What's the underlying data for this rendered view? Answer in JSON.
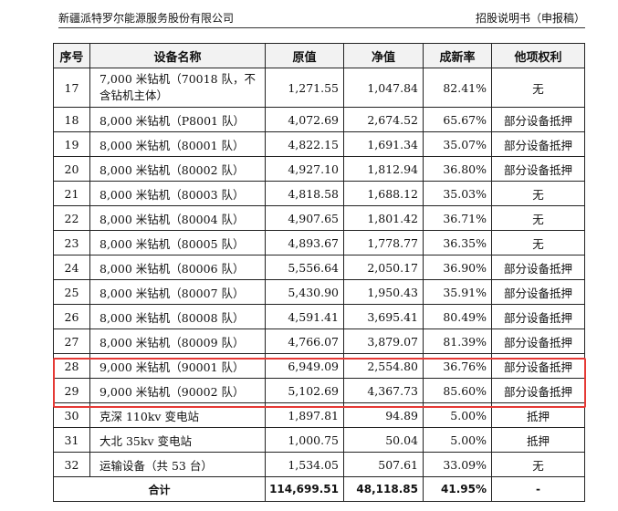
{
  "header": {
    "company": "新疆派特罗尔能源服务股份有限公司",
    "doc_type": "招股说明书（申报稿）"
  },
  "table": {
    "columns": [
      "序号",
      "设备名称",
      "原值",
      "净值",
      "成新率",
      "他项权利"
    ],
    "rows": [
      [
        "17",
        "7,000 米钻机（70018 队，不含钻机主体）",
        "1,271.55",
        "1,047.84",
        "82.41%",
        "无"
      ],
      [
        "18",
        "8,000 米钻机（P8001 队）",
        "4,072.69",
        "2,674.52",
        "65.67%",
        "部分设备抵押"
      ],
      [
        "19",
        "8,000 米钻机（80001 队）",
        "4,822.15",
        "1,691.34",
        "35.07%",
        "部分设备抵押"
      ],
      [
        "20",
        "8,000 米钻机（80002 队）",
        "4,927.10",
        "1,812.94",
        "36.80%",
        "部分设备抵押"
      ],
      [
        "21",
        "8,000 米钻机（80003 队）",
        "4,818.58",
        "1,688.12",
        "35.03%",
        "无"
      ],
      [
        "22",
        "8,000 米钻机（80004 队）",
        "4,907.65",
        "1,801.42",
        "36.71%",
        "无"
      ],
      [
        "23",
        "8,000 米钻机（80005 队）",
        "4,893.67",
        "1,778.77",
        "36.35%",
        "无"
      ],
      [
        "24",
        "8,000 米钻机（80006 队）",
        "5,556.64",
        "2,050.17",
        "36.90%",
        "部分设备抵押"
      ],
      [
        "25",
        "8,000 米钻机（80007 队）",
        "5,430.90",
        "1,950.43",
        "35.91%",
        "部分设备抵押"
      ],
      [
        "26",
        "8,000 米钻机（80008 队）",
        "4,591.41",
        "3,695.41",
        "80.49%",
        "部分设备抵押"
      ],
      [
        "27",
        "8,000 米钻机（80009 队）",
        "4,766.07",
        "3,879.07",
        "81.39%",
        "部分设备抵押"
      ],
      [
        "28",
        "9,000 米钻机（90001 队）",
        "6,949.09",
        "2,554.80",
        "36.76%",
        "部分设备抵押"
      ],
      [
        "29",
        "9,000 米钻机（90002 队）",
        "5,102.69",
        "4,367.73",
        "85.60%",
        "部分设备抵押"
      ],
      [
        "30",
        "克深 110kv 变电站",
        "1,897.81",
        "94.89",
        "5.00%",
        "抵押"
      ],
      [
        "31",
        "大北 35kv 变电站",
        "1,000.75",
        "50.04",
        "5.00%",
        "抵押"
      ],
      [
        "32",
        "运输设备（共 53 台）",
        "1,534.05",
        "507.61",
        "33.09%",
        "无"
      ]
    ],
    "total": [
      "合计",
      "114,699.51",
      "48,118.85",
      "41.95%",
      "-"
    ]
  },
  "colors": {
    "highlight": "#e53935"
  }
}
